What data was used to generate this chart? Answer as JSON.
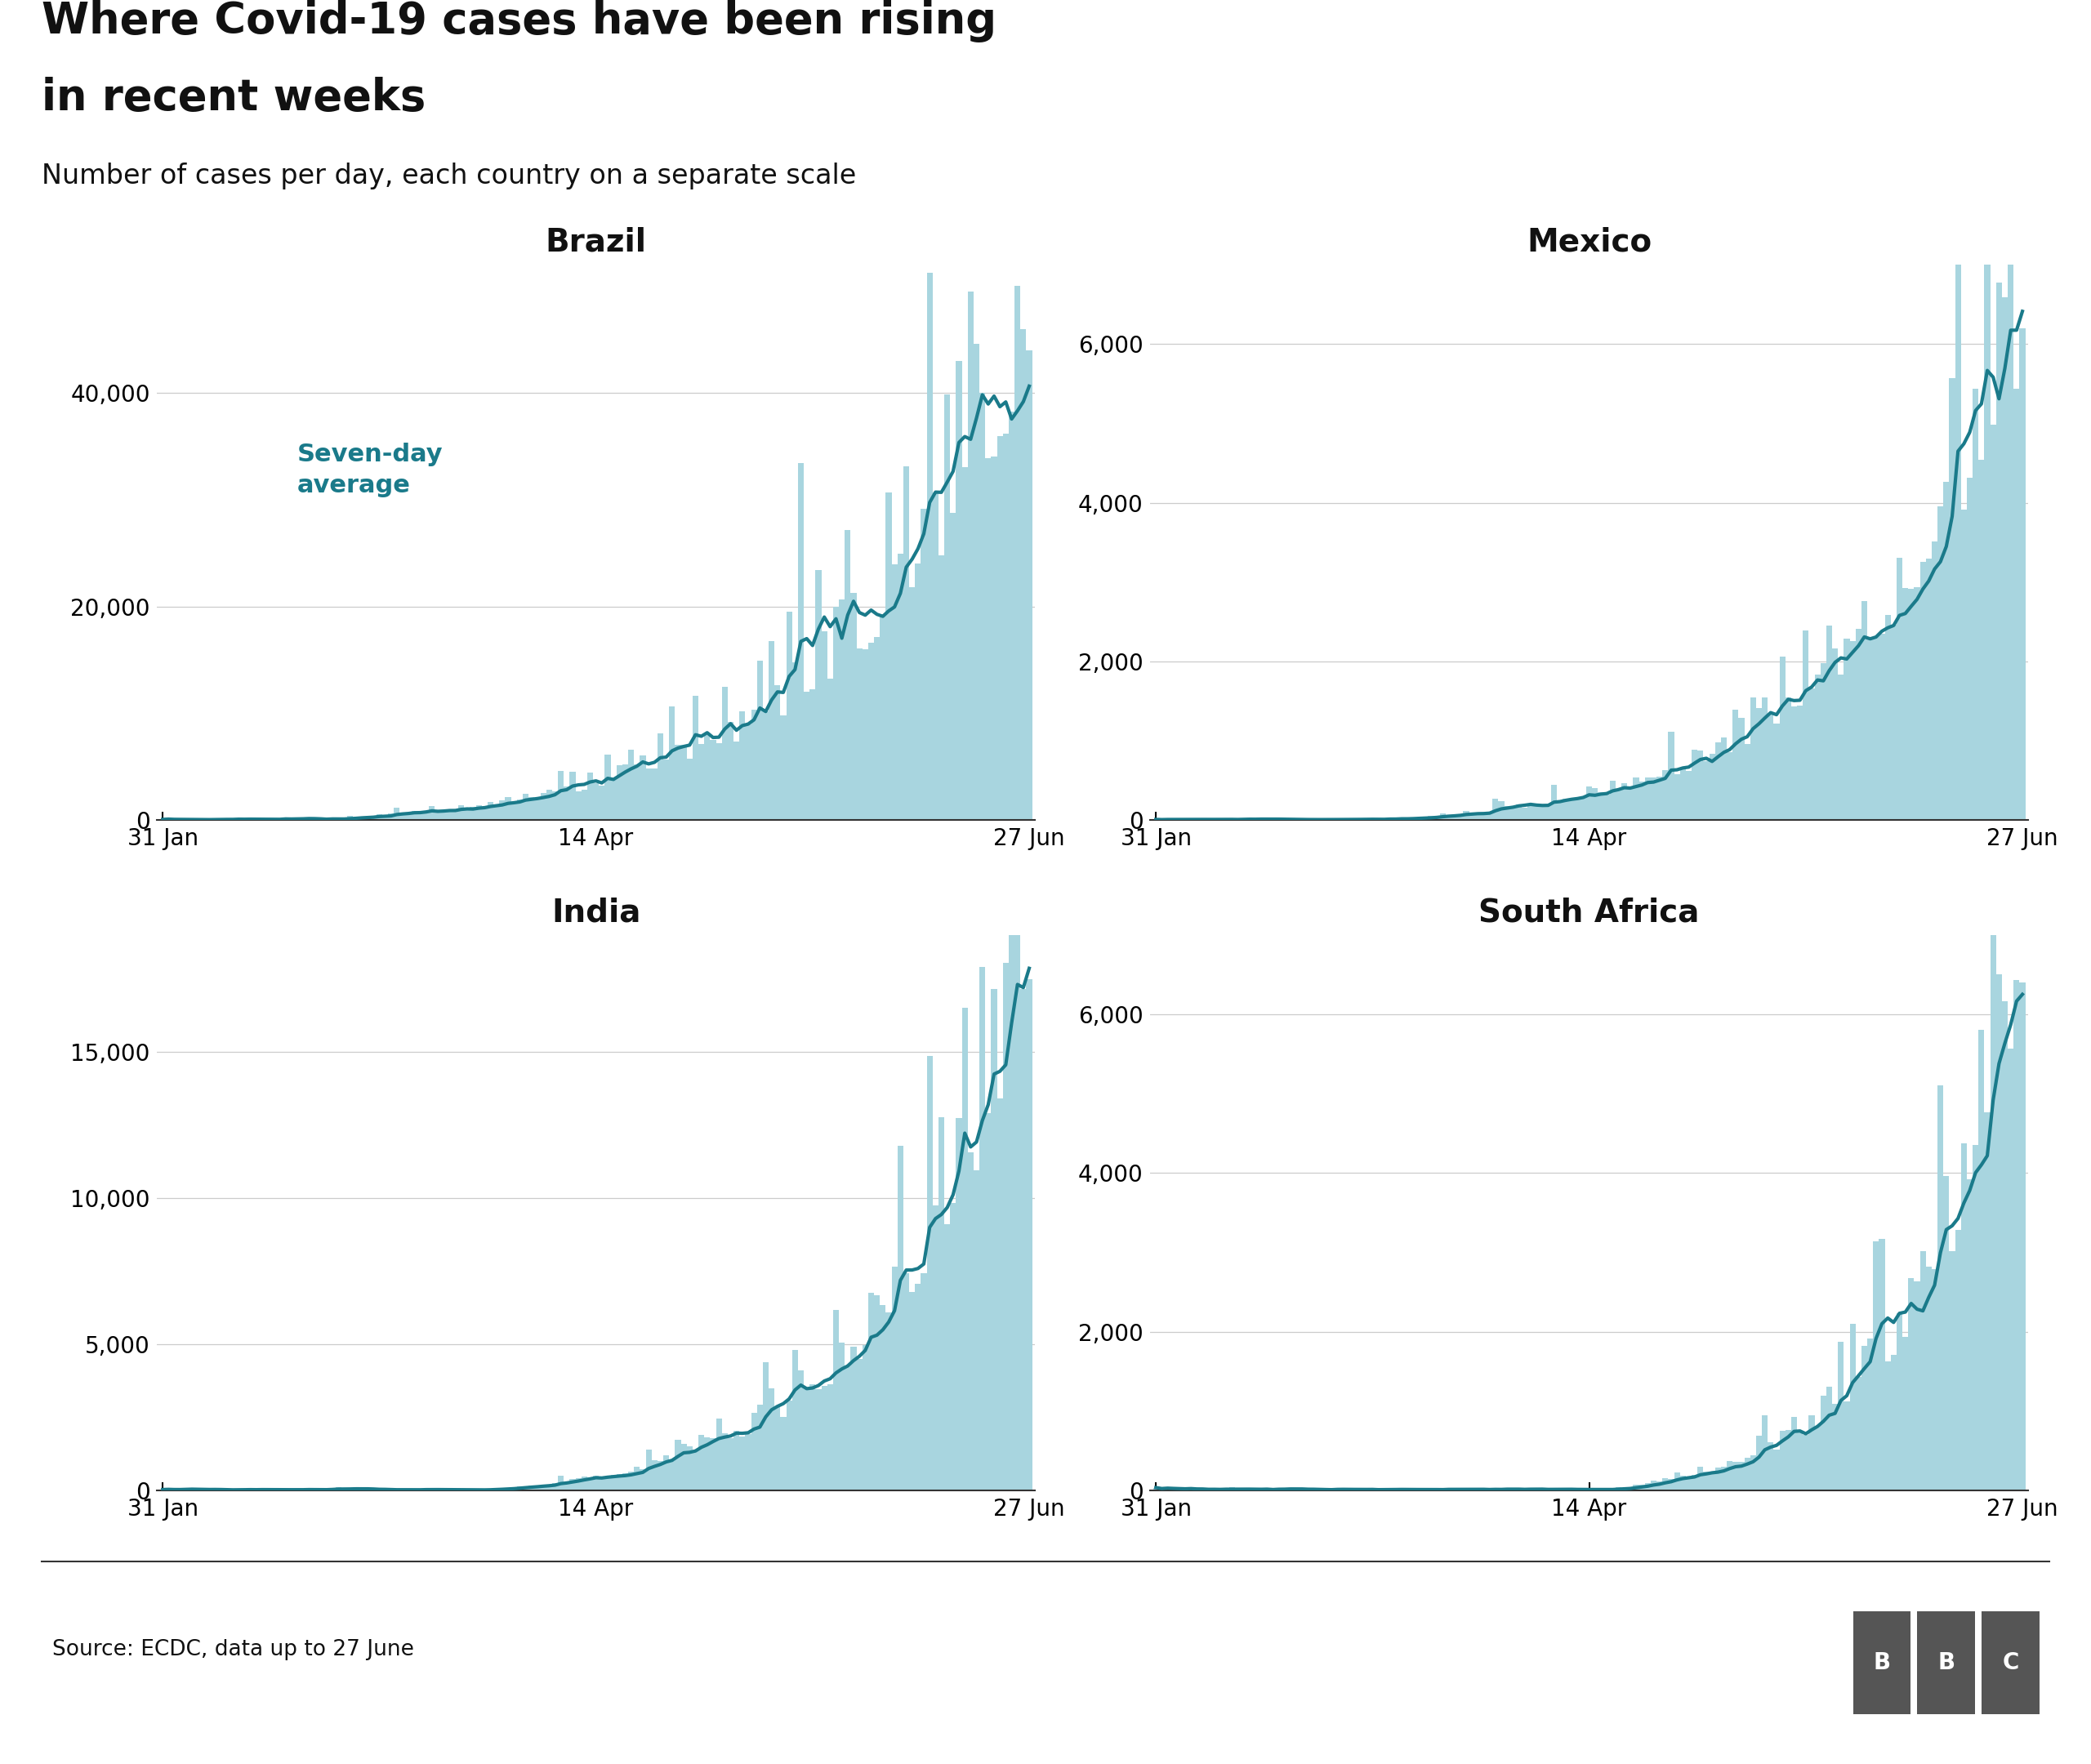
{
  "title_line1": "Where Covid-19 cases have been rising",
  "title_line2": "in recent weeks",
  "subtitle": "Number of cases per day, each country on a separate scale",
  "source": "Source: ECDC, data up to 27 June",
  "legend_label": "Seven-day\naverage",
  "countries": [
    "Brazil",
    "Mexico",
    "India",
    "South Africa"
  ],
  "bar_color": "#a8d5df",
  "line_color": "#1a7a8a",
  "legend_color": "#1a7a8a",
  "background_color": "#ffffff",
  "title_fontsize": 38,
  "subtitle_fontsize": 24,
  "country_fontsize": 28,
  "tick_fontsize": 20,
  "source_fontsize": 19,
  "x_tick_labels": [
    "31 Jan",
    "14 Apr",
    "27 Jun"
  ],
  "yticks": {
    "Brazil": [
      0,
      20000,
      40000
    ],
    "Mexico": [
      0,
      2000,
      4000,
      6000
    ],
    "India": [
      0,
      5000,
      10000,
      15000
    ],
    "South Africa": [
      0,
      2000,
      4000,
      6000
    ]
  },
  "ylims": {
    "Brazil": [
      0,
      52000
    ],
    "Mexico": [
      0,
      7000
    ],
    "India": [
      0,
      19000
    ],
    "South Africa": [
      0,
      7000
    ]
  }
}
